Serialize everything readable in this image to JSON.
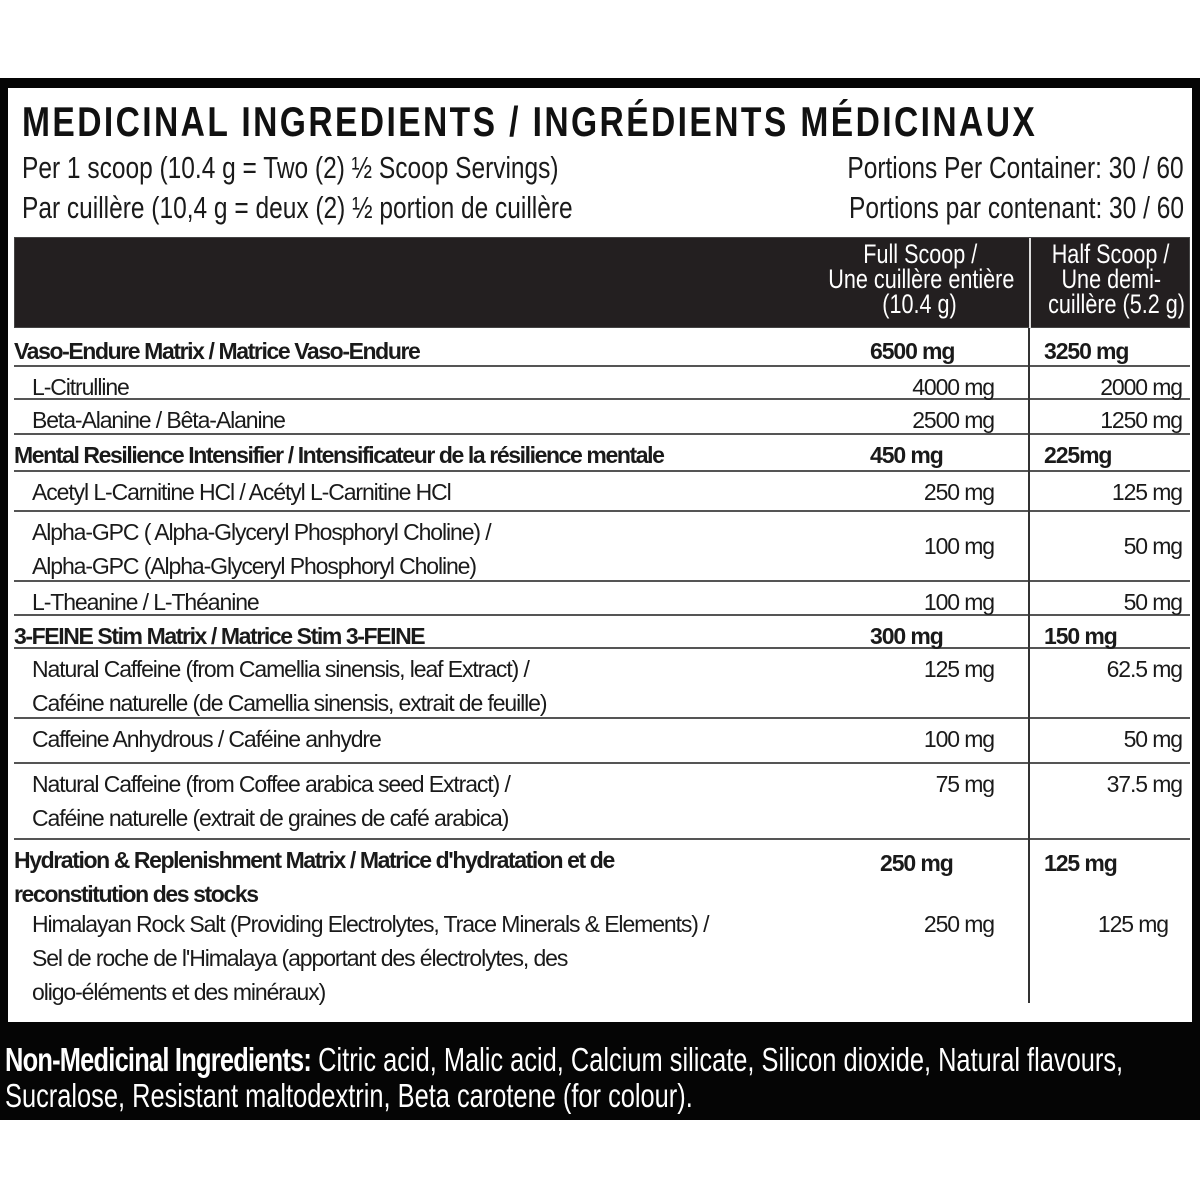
{
  "title": "MEDICINAL INGREDIENTS / INGRÉDIENTS MÉDICINAUX",
  "serving_en": "Per 1 scoop (10.4 g = Two (2) ½ Scoop Servings)",
  "serving_fr": "Par cuillère (10,4 g = deux (2) ½ portion de cuillère",
  "portions_en": "Portions Per Container: 30 / 60",
  "portions_fr": "Portions par contenant: 30 / 60",
  "columns": {
    "full": [
      "Full Scoop /",
      "Une cuillère entière",
      "(10.4 g)"
    ],
    "half": [
      "Half Scoop /",
      "Une demi-",
      "cuillère (5.2 g)"
    ]
  },
  "rows": [
    {
      "kind": "group",
      "name": [
        "Vaso-Endure Matrix / Matrice Vaso-Endure"
      ],
      "full": "6500 mg",
      "half": "3250 mg"
    },
    {
      "kind": "item",
      "name": [
        "L-Citrulline"
      ],
      "full": "4000 mg",
      "half": "2000 mg"
    },
    {
      "kind": "item",
      "name": [
        "Beta-Alanine / Bêta-Alanine"
      ],
      "full": "2500 mg",
      "half": "1250 mg"
    },
    {
      "kind": "group",
      "name": [
        "Mental Resilience Intensifier / Intensificateur de la résilience mentale"
      ],
      "full": "450 mg",
      "half": "225mg"
    },
    {
      "kind": "item",
      "name": [
        "Acetyl L-Carnitine HCl / Acétyl L-Carnitine HCl"
      ],
      "full": "250 mg",
      "half": "125 mg"
    },
    {
      "kind": "item",
      "name": [
        "Alpha-GPC ( Alpha-Glyceryl Phosphoryl Choline) /",
        "Alpha-GPC (Alpha-Glyceryl Phosphoryl Choline)"
      ],
      "full": "100 mg",
      "half": "50 mg"
    },
    {
      "kind": "item",
      "name": [
        "L-Theanine / L-Théanine"
      ],
      "full": "100 mg",
      "half": "50 mg"
    },
    {
      "kind": "group",
      "name": [
        "3-FEINE Stim Matrix / Matrice Stim 3-FEINE"
      ],
      "full": "300 mg",
      "half": "150 mg"
    },
    {
      "kind": "item",
      "name": [
        "Natural Caffeine (from Camellia sinensis, leaf Extract) /",
        "Caféine naturelle (de Camellia sinensis, extrait de feuille)"
      ],
      "full": "125 mg",
      "half": "62.5 mg"
    },
    {
      "kind": "item",
      "name": [
        "Caffeine Anhydrous / Caféine anhydre"
      ],
      "full": "100 mg",
      "half": "50 mg"
    },
    {
      "kind": "item",
      "name": [
        "Natural Caffeine (from Coffee arabica seed Extract) /",
        "Caféine naturelle (extrait de graines de café arabica)"
      ],
      "full": "75 mg",
      "half": "37.5 mg"
    },
    {
      "kind": "group",
      "name": [
        "Hydration & Replenishment Matrix / Matrice d'hydratation et de",
        "reconstitution des stocks"
      ],
      "full": "250 mg",
      "half": "125 mg"
    },
    {
      "kind": "item",
      "name": [
        "Himalayan Rock Salt (Providing Electrolytes, Trace Minerals & Elements) /",
        "Sel de roche de l'Himalaya (apportant des électrolytes, des",
        "oligo-éléments et des minéraux)"
      ],
      "full": "250 mg",
      "half": "125 mg"
    }
  ],
  "non_medicinal": {
    "label": "Non-Medicinal Ingredients:",
    "text": " Citric acid, Malic acid, Calcium silicate, Silicon dioxide, Natural flavours, Sucralose, Resistant maltodextrin, Beta carotene (for colour)."
  }
}
